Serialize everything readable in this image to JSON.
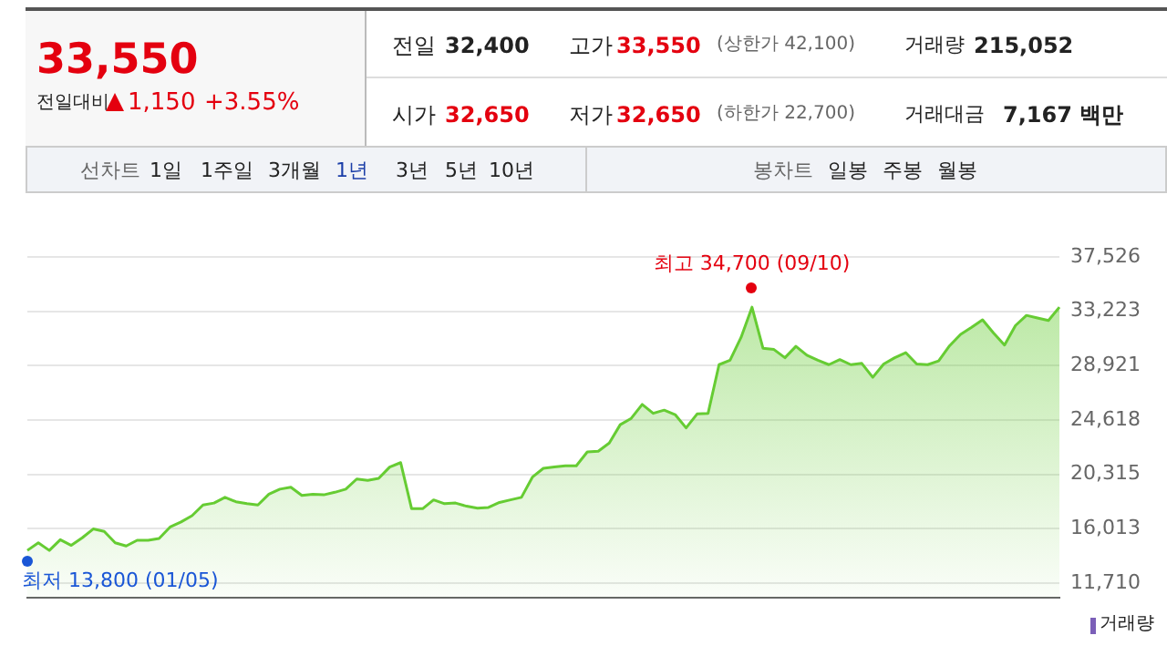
{
  "chart_data": {
    "type": "area",
    "color": "#66cc33",
    "marker": "none",
    "grid": "y",
    "legend": false,
    "tick_labels": "y",
    "categories": [
      null,
      null,
      null,
      null,
      null,
      null,
      null,
      null,
      null,
      null,
      null,
      null,
      null,
      null,
      null,
      null,
      null,
      null,
      null,
      null,
      null,
      null,
      null,
      null,
      null,
      null,
      null,
      null,
      null,
      null,
      null,
      null,
      null,
      null,
      null,
      null,
      null,
      null,
      null,
      null,
      null,
      null,
      null,
      null,
      null,
      null,
      null,
      null,
      null,
      null,
      null,
      null,
      null,
      null,
      null,
      null,
      null,
      null,
      null,
      null,
      null,
      null,
      null,
      null,
      null,
      null,
      null,
      null,
      null,
      null,
      null,
      null,
      null,
      null,
      null,
      null,
      null,
      null,
      null,
      null,
      null,
      null,
      null,
      null,
      null,
      null,
      null,
      null,
      null,
      null,
      null,
      null,
      null,
      null,
      null
    ],
    "values": [
      14300,
      14900,
      14300,
      15150,
      14700,
      15300,
      16000,
      15800,
      14900,
      14650,
      15100,
      15100,
      15250,
      16150,
      16550,
      17050,
      17900,
      18050,
      18500,
      18150,
      18000,
      17900,
      18750,
      19150,
      19300,
      18650,
      18750,
      18700,
      18900,
      19150,
      19950,
      19850,
      20000,
      20900,
      21250,
      17600,
      17600,
      18300,
      18000,
      18050,
      17800,
      17650,
      17700,
      18100,
      18300,
      18500,
      20100,
      20800,
      20900,
      21000,
      21000,
      22100,
      22150,
      22800,
      24250,
      24750,
      25850,
      25150,
      25400,
      25050,
      24000,
      25100,
      25150,
      29000,
      29350,
      31150,
      33550,
      30300,
      30200,
      29550,
      30450,
      29750,
      29350,
      29000,
      29400,
      29000,
      29100,
      28000,
      29050,
      29550,
      29950,
      29050,
      29000,
      29300,
      30500,
      31400,
      31950,
      32550,
      31500,
      30550,
      32100,
      32900,
      32700,
      32500,
      33550
    ],
    "ylim": [
      10560,
      37526
    ],
    "yticks": [
      {
        "value": 11710,
        "label": "11,710"
      },
      {
        "value": 16013,
        "label": "16,013"
      },
      {
        "value": 20315,
        "label": "20,315"
      },
      {
        "value": 24618,
        "label": "24,618"
      },
      {
        "value": 28921,
        "label": "28,921"
      },
      {
        "value": 33223,
        "label": "33,223"
      },
      {
        "value": 37526,
        "label": "37,526"
      }
    ],
    "annotations": [
      "33,550",
      "전일대비",
      "1,150",
      "+3.55%",
      "전일",
      "32,400",
      "고가",
      "33,550",
      "(상한가 42,100)",
      "거래량",
      "215,052",
      "시가",
      "32,650",
      "저가",
      "32,650",
      "(하한가 22,700)",
      "거래대금",
      "7,167 백만",
      "선차트",
      "1일",
      "1주일",
      "3개월",
      "1년",
      "3년",
      "5년",
      "10년",
      "봉차트",
      "일봉",
      "주봉",
      "월봉",
      "최고 34,700 (09/10)",
      "최저 13,800 (01/05)",
      "거래량"
    ]
  }
}
